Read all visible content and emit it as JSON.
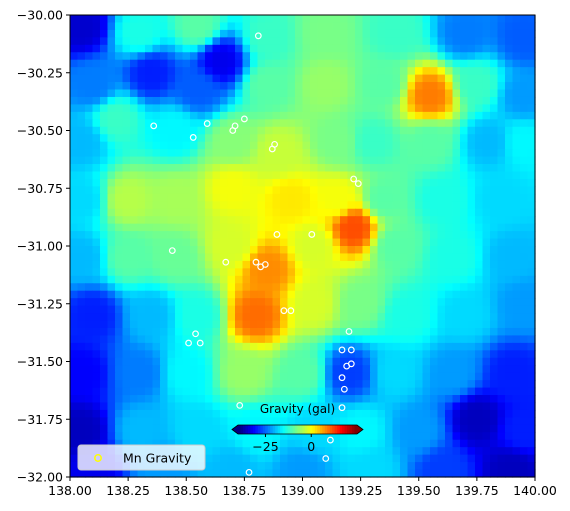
{
  "chart_data": {
    "type": "heatmap",
    "description_kind": "gravity anomaly map with point overlay",
    "xlim": [
      138.0,
      140.0
    ],
    "ylim": [
      -32.0,
      -30.0
    ],
    "x_ticks": [
      "138.00",
      "138.25",
      "138.50",
      "138.75",
      "139.00",
      "139.25",
      "139.50",
      "139.75",
      "140.00"
    ],
    "x_tick_values": [
      138.0,
      138.25,
      138.5,
      138.75,
      139.0,
      139.25,
      139.5,
      139.75,
      140.0
    ],
    "y_ticks": [
      "−30.00",
      "−30.25",
      "−30.50",
      "−30.75",
      "−31.00",
      "−31.25",
      "−31.50",
      "−31.75",
      "−32.00"
    ],
    "y_tick_values": [
      -30.0,
      -30.25,
      -30.5,
      -30.75,
      -31.0,
      -31.25,
      -31.5,
      -31.75,
      -32.0
    ],
    "colormap": "jet",
    "colorbar": {
      "title": "Gravity (gal)",
      "ticks": [
        "−25",
        "0"
      ],
      "tick_values": [
        -25,
        0
      ],
      "range": [
        -40,
        25
      ],
      "extend": "both",
      "orientation": "horizontal",
      "placement": "inset-bottom-center"
    },
    "legend": {
      "placement": "lower-left",
      "entries": [
        {
          "label": "Mn Gravity",
          "marker": "open-circle",
          "edge_color": "#ffff00"
        }
      ]
    },
    "points_edge_color": "#ffffff",
    "points": [
      [
        138.81,
        -30.09
      ],
      [
        138.36,
        -30.48
      ],
      [
        138.53,
        -30.53
      ],
      [
        138.59,
        -30.47
      ],
      [
        138.7,
        -30.5
      ],
      [
        138.71,
        -30.48
      ],
      [
        138.75,
        -30.45
      ],
      [
        138.88,
        -30.56
      ],
      [
        138.87,
        -30.58
      ],
      [
        139.22,
        -30.71
      ],
      [
        139.24,
        -30.73
      ],
      [
        138.44,
        -31.02
      ],
      [
        138.89,
        -30.95
      ],
      [
        139.04,
        -30.95
      ],
      [
        138.67,
        -31.07
      ],
      [
        138.8,
        -31.07
      ],
      [
        138.84,
        -31.08
      ],
      [
        138.82,
        -31.09
      ],
      [
        138.92,
        -31.28
      ],
      [
        138.95,
        -31.28
      ],
      [
        138.54,
        -31.38
      ],
      [
        138.56,
        -31.42
      ],
      [
        138.51,
        -31.42
      ],
      [
        139.2,
        -31.37
      ],
      [
        139.21,
        -31.45
      ],
      [
        139.17,
        -31.45
      ],
      [
        139.21,
        -31.51
      ],
      [
        139.19,
        -31.52
      ],
      [
        139.17,
        -31.57
      ],
      [
        139.18,
        -31.62
      ],
      [
        138.73,
        -31.69
      ],
      [
        139.17,
        -31.7
      ],
      [
        139.12,
        -31.84
      ],
      [
        139.1,
        -31.92
      ],
      [
        138.77,
        -31.98
      ]
    ],
    "field_anchors": [
      {
        "x": 138.05,
        "y": -30.05,
        "v": -35
      },
      {
        "x": 138.3,
        "y": -30.08,
        "v": -14
      },
      {
        "x": 138.55,
        "y": -30.05,
        "v": -10
      },
      {
        "x": 138.85,
        "y": -30.1,
        "v": -12
      },
      {
        "x": 139.1,
        "y": -30.08,
        "v": -8
      },
      {
        "x": 139.4,
        "y": -30.08,
        "v": -12
      },
      {
        "x": 139.7,
        "y": -30.08,
        "v": -24
      },
      {
        "x": 139.95,
        "y": -30.1,
        "v": -26
      },
      {
        "x": 138.1,
        "y": -30.3,
        "v": -24
      },
      {
        "x": 138.35,
        "y": -30.25,
        "v": -30
      },
      {
        "x": 138.55,
        "y": -30.32,
        "v": -26
      },
      {
        "x": 138.65,
        "y": -30.2,
        "v": -33
      },
      {
        "x": 138.85,
        "y": -30.3,
        "v": -10
      },
      {
        "x": 139.1,
        "y": -30.3,
        "v": -6
      },
      {
        "x": 139.35,
        "y": -30.3,
        "v": -10
      },
      {
        "x": 139.55,
        "y": -30.35,
        "v": 9
      },
      {
        "x": 139.75,
        "y": -30.3,
        "v": -12
      },
      {
        "x": 139.95,
        "y": -30.35,
        "v": -22
      },
      {
        "x": 138.05,
        "y": -30.55,
        "v": -20
      },
      {
        "x": 138.2,
        "y": -30.45,
        "v": -12
      },
      {
        "x": 138.45,
        "y": -30.5,
        "v": -16
      },
      {
        "x": 138.7,
        "y": -30.55,
        "v": -7
      },
      {
        "x": 138.9,
        "y": -30.6,
        "v": -3
      },
      {
        "x": 139.15,
        "y": -30.55,
        "v": -8
      },
      {
        "x": 139.3,
        "y": -30.55,
        "v": -12
      },
      {
        "x": 139.55,
        "y": -30.55,
        "v": -10
      },
      {
        "x": 139.8,
        "y": -30.55,
        "v": -20
      },
      {
        "x": 139.95,
        "y": -30.55,
        "v": -16
      },
      {
        "x": 138.05,
        "y": -30.8,
        "v": -18
      },
      {
        "x": 138.25,
        "y": -30.8,
        "v": -4
      },
      {
        "x": 138.45,
        "y": -30.8,
        "v": -5
      },
      {
        "x": 138.7,
        "y": -30.75,
        "v": 0
      },
      {
        "x": 138.95,
        "y": -30.8,
        "v": 2
      },
      {
        "x": 139.15,
        "y": -30.8,
        "v": 0
      },
      {
        "x": 139.35,
        "y": -30.8,
        "v": -10
      },
      {
        "x": 139.6,
        "y": -30.8,
        "v": -14
      },
      {
        "x": 139.85,
        "y": -30.8,
        "v": -18
      },
      {
        "x": 138.05,
        "y": -31.05,
        "v": -20
      },
      {
        "x": 138.25,
        "y": -31.05,
        "v": -10
      },
      {
        "x": 138.45,
        "y": -31.05,
        "v": -9
      },
      {
        "x": 138.7,
        "y": -31.0,
        "v": -2
      },
      {
        "x": 138.85,
        "y": -31.1,
        "v": 8
      },
      {
        "x": 139.05,
        "y": -31.0,
        "v": -2
      },
      {
        "x": 139.22,
        "y": -30.92,
        "v": 12
      },
      {
        "x": 139.4,
        "y": -31.0,
        "v": -10
      },
      {
        "x": 139.65,
        "y": -31.05,
        "v": -14
      },
      {
        "x": 139.9,
        "y": -31.05,
        "v": -20
      },
      {
        "x": 138.1,
        "y": -31.3,
        "v": -30
      },
      {
        "x": 138.35,
        "y": -31.3,
        "v": -20
      },
      {
        "x": 138.55,
        "y": -31.3,
        "v": -14
      },
      {
        "x": 138.8,
        "y": -31.3,
        "v": 10
      },
      {
        "x": 139.05,
        "y": -31.25,
        "v": -2
      },
      {
        "x": 139.25,
        "y": -31.25,
        "v": -8
      },
      {
        "x": 139.45,
        "y": -31.3,
        "v": -14
      },
      {
        "x": 139.7,
        "y": -31.3,
        "v": -18
      },
      {
        "x": 139.95,
        "y": -31.25,
        "v": -22
      },
      {
        "x": 138.05,
        "y": -31.55,
        "v": -32
      },
      {
        "x": 138.3,
        "y": -31.55,
        "v": -24
      },
      {
        "x": 138.5,
        "y": -31.55,
        "v": -16
      },
      {
        "x": 138.75,
        "y": -31.55,
        "v": -6
      },
      {
        "x": 139.0,
        "y": -31.55,
        "v": -10
      },
      {
        "x": 139.2,
        "y": -31.55,
        "v": -28
      },
      {
        "x": 139.4,
        "y": -31.55,
        "v": -18
      },
      {
        "x": 139.65,
        "y": -31.55,
        "v": -22
      },
      {
        "x": 139.9,
        "y": -31.55,
        "v": -30
      },
      {
        "x": 138.05,
        "y": -31.8,
        "v": -36
      },
      {
        "x": 138.3,
        "y": -31.8,
        "v": -20
      },
      {
        "x": 138.55,
        "y": -31.8,
        "v": -18
      },
      {
        "x": 138.8,
        "y": -31.8,
        "v": -16
      },
      {
        "x": 139.05,
        "y": -31.8,
        "v": -18
      },
      {
        "x": 139.25,
        "y": -31.8,
        "v": -16
      },
      {
        "x": 139.5,
        "y": -31.8,
        "v": -22
      },
      {
        "x": 139.75,
        "y": -31.75,
        "v": -36
      },
      {
        "x": 139.95,
        "y": -31.8,
        "v": -30
      },
      {
        "x": 138.1,
        "y": -31.97,
        "v": -33
      },
      {
        "x": 138.4,
        "y": -31.97,
        "v": -22
      },
      {
        "x": 138.7,
        "y": -31.97,
        "v": -20
      },
      {
        "x": 139.0,
        "y": -31.97,
        "v": -22
      },
      {
        "x": 139.3,
        "y": -31.97,
        "v": -18
      },
      {
        "x": 139.6,
        "y": -31.97,
        "v": -28
      },
      {
        "x": 139.9,
        "y": -31.97,
        "v": -36
      }
    ]
  }
}
